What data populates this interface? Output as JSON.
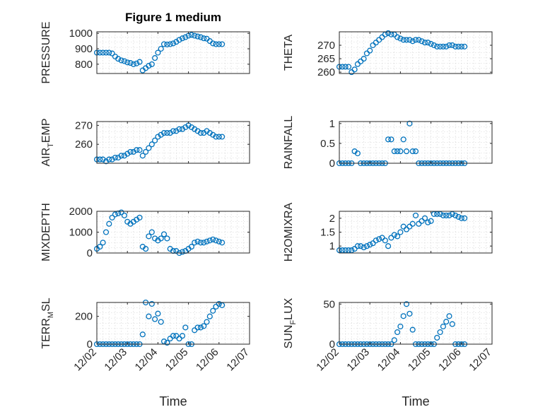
{
  "figure": {
    "title": "Figure 1 medium",
    "xlabel": "Time",
    "x_tick_labels": [
      "12/02",
      "12/03",
      "12/04",
      "12/05",
      "12/06",
      "12/07"
    ],
    "marker_color": "#0072BD"
  },
  "chart_data": [
    {
      "type": "scatter",
      "id": "pressure",
      "ylabel": "PRESSURE",
      "ylim": [
        740,
        1010
      ],
      "yticks": [
        800,
        900,
        1000
      ],
      "ytick_labels": [
        "800",
        "900",
        "1000"
      ],
      "xlim": [
        0,
        5
      ],
      "grid": true,
      "x": [
        0.0,
        0.1,
        0.2,
        0.3,
        0.4,
        0.5,
        0.6,
        0.7,
        0.8,
        0.9,
        1.0,
        1.1,
        1.2,
        1.3,
        1.4,
        1.5,
        1.6,
        1.7,
        1.8,
        1.9,
        2.0,
        2.1,
        2.2,
        2.3,
        2.4,
        2.5,
        2.6,
        2.7,
        2.8,
        2.9,
        3.0,
        3.1,
        3.2,
        3.3,
        3.4,
        3.5,
        3.6,
        3.7,
        3.8,
        3.9,
        4.0,
        4.1
      ],
      "y": [
        875,
        875,
        875,
        875,
        875,
        870,
        850,
        835,
        825,
        820,
        812,
        808,
        800,
        805,
        815,
        760,
        775,
        790,
        800,
        840,
        875,
        900,
        930,
        928,
        930,
        935,
        945,
        958,
        968,
        975,
        985,
        990,
        985,
        980,
        975,
        968,
        965,
        950,
        935,
        930,
        930,
        930
      ]
    },
    {
      "type": "scatter",
      "id": "air_temp",
      "ylabel": "AIR_TEMP",
      "ylim": [
        250,
        272
      ],
      "yticks": [
        260,
        270
      ],
      "ytick_labels": [
        "260",
        "270"
      ],
      "xlim": [
        0,
        5
      ],
      "grid": true,
      "x": [
        0.0,
        0.1,
        0.2,
        0.3,
        0.4,
        0.5,
        0.6,
        0.7,
        0.8,
        0.9,
        1.0,
        1.1,
        1.2,
        1.3,
        1.4,
        1.5,
        1.6,
        1.7,
        1.8,
        1.9,
        2.0,
        2.1,
        2.2,
        2.3,
        2.4,
        2.5,
        2.6,
        2.7,
        2.8,
        2.9,
        3.0,
        3.1,
        3.2,
        3.3,
        3.4,
        3.5,
        3.6,
        3.7,
        3.8,
        3.9,
        4.0,
        4.1
      ],
      "y": [
        252,
        252,
        252,
        251,
        252,
        252,
        253,
        253,
        254,
        254,
        255,
        256,
        256,
        257,
        257,
        254,
        256,
        258,
        260,
        262,
        264,
        265,
        266,
        266,
        266,
        267,
        267,
        268,
        268,
        269,
        270,
        269,
        268,
        267,
        266,
        266,
        267,
        266,
        265,
        264,
        264,
        264
      ]
    },
    {
      "type": "scatter",
      "id": "mixdepth",
      "ylabel": "MIXDEPTH",
      "ylim": [
        0,
        2000
      ],
      "yticks": [
        0,
        1000,
        2000
      ],
      "ytick_labels": [
        "0",
        "1000",
        "2000"
      ],
      "xlim": [
        0,
        5
      ],
      "grid": true,
      "x": [
        0.0,
        0.1,
        0.2,
        0.3,
        0.4,
        0.5,
        0.6,
        0.7,
        0.8,
        0.9,
        1.0,
        1.1,
        1.2,
        1.3,
        1.4,
        1.5,
        1.6,
        1.7,
        1.8,
        1.9,
        2.0,
        2.1,
        2.2,
        2.3,
        2.4,
        2.5,
        2.6,
        2.7,
        2.8,
        2.9,
        3.0,
        3.1,
        3.2,
        3.3,
        3.4,
        3.5,
        3.6,
        3.7,
        3.8,
        3.9,
        4.0,
        4.1
      ],
      "y": [
        200,
        300,
        500,
        1000,
        1400,
        1700,
        1850,
        1900,
        1950,
        1800,
        1500,
        1400,
        1500,
        1600,
        1700,
        300,
        200,
        800,
        1000,
        700,
        600,
        700,
        900,
        700,
        200,
        100,
        100,
        0,
        50,
        100,
        200,
        300,
        500,
        550,
        500,
        500,
        550,
        600,
        650,
        600,
        550,
        500
      ]
    },
    {
      "type": "scatter",
      "id": "terr_msl",
      "ylabel": "TERR_MSL",
      "ylim": [
        0,
        300
      ],
      "yticks": [
        0,
        200
      ],
      "ytick_labels": [
        "0",
        "200"
      ],
      "xlim": [
        0,
        5
      ],
      "grid": true,
      "x": [
        0.0,
        0.1,
        0.2,
        0.3,
        0.4,
        0.5,
        0.6,
        0.7,
        0.8,
        0.9,
        1.0,
        1.1,
        1.2,
        1.3,
        1.4,
        1.5,
        1.6,
        1.7,
        1.8,
        1.9,
        2.0,
        2.1,
        2.2,
        2.3,
        2.4,
        2.5,
        2.6,
        2.7,
        2.8,
        2.9,
        3.0,
        3.1,
        3.2,
        3.3,
        3.4,
        3.5,
        3.6,
        3.7,
        3.8,
        3.9,
        4.0,
        4.1
      ],
      "y": [
        0,
        0,
        0,
        0,
        0,
        0,
        0,
        0,
        0,
        0,
        0,
        0,
        0,
        0,
        0,
        70,
        300,
        200,
        290,
        180,
        220,
        160,
        20,
        10,
        40,
        60,
        60,
        40,
        60,
        120,
        0,
        0,
        100,
        120,
        120,
        130,
        160,
        200,
        240,
        270,
        290,
        280
      ]
    },
    {
      "type": "scatter",
      "id": "theta",
      "ylabel": "THETA",
      "ylim": [
        259.5,
        275
      ],
      "yticks": [
        260,
        265,
        270
      ],
      "ytick_labels": [
        "260",
        "265",
        "270"
      ],
      "xlim": [
        0,
        5
      ],
      "grid": true,
      "x": [
        0.0,
        0.1,
        0.2,
        0.3,
        0.4,
        0.5,
        0.6,
        0.7,
        0.8,
        0.9,
        1.0,
        1.1,
        1.2,
        1.3,
        1.4,
        1.5,
        1.6,
        1.7,
        1.8,
        1.9,
        2.0,
        2.1,
        2.2,
        2.3,
        2.4,
        2.5,
        2.6,
        2.7,
        2.8,
        2.9,
        3.0,
        3.1,
        3.2,
        3.3,
        3.4,
        3.5,
        3.6,
        3.7,
        3.8,
        3.9,
        4.0,
        4.1
      ],
      "y": [
        262,
        262,
        262,
        262,
        260,
        261,
        263,
        264,
        265,
        267,
        268,
        270,
        271,
        272,
        273,
        274,
        274.5,
        274,
        274,
        273,
        272.5,
        272,
        272,
        272,
        271.5,
        272,
        272,
        271.5,
        271,
        271,
        270.5,
        270,
        269.5,
        269.5,
        269.5,
        269.5,
        270,
        270,
        269.5,
        269.5,
        269.5,
        269.5
      ]
    },
    {
      "type": "scatter",
      "id": "rainfall",
      "ylabel": "RAINFALL",
      "ylim": [
        0,
        1.05
      ],
      "yticks": [
        0,
        0.5,
        1
      ],
      "ytick_labels": [
        "0",
        "0.5",
        "1"
      ],
      "xlim": [
        0,
        5
      ],
      "grid": true,
      "x": [
        0.0,
        0.1,
        0.2,
        0.3,
        0.4,
        0.5,
        0.6,
        0.7,
        0.8,
        0.9,
        1.0,
        1.1,
        1.2,
        1.3,
        1.4,
        1.5,
        1.6,
        1.7,
        1.8,
        1.9,
        2.0,
        2.1,
        2.2,
        2.3,
        2.4,
        2.5,
        2.6,
        2.7,
        2.8,
        2.9,
        3.0,
        3.1,
        3.2,
        3.3,
        3.4,
        3.5,
        3.6,
        3.7,
        3.8,
        3.9,
        4.0,
        4.1
      ],
      "y": [
        0,
        0,
        0,
        0,
        0,
        0.3,
        0.25,
        0,
        0,
        0,
        0,
        0,
        0,
        0,
        0,
        0,
        0.6,
        0.6,
        0.3,
        0.3,
        0.3,
        0.6,
        0.3,
        1.0,
        0.3,
        0.3,
        0,
        0,
        0,
        0,
        0,
        0,
        0,
        0,
        0,
        0,
        0,
        0,
        0,
        0,
        0,
        0
      ]
    },
    {
      "type": "scatter",
      "id": "h2omixra",
      "ylabel": "H2OMIXRA",
      "ylim": [
        0.75,
        2.25
      ],
      "yticks": [
        1,
        1.5,
        2
      ],
      "ytick_labels": [
        "1",
        "1.5",
        "2"
      ],
      "xlim": [
        0,
        5
      ],
      "grid": true,
      "x": [
        0.0,
        0.1,
        0.2,
        0.3,
        0.4,
        0.5,
        0.6,
        0.7,
        0.8,
        0.9,
        1.0,
        1.1,
        1.2,
        1.3,
        1.4,
        1.5,
        1.6,
        1.7,
        1.8,
        1.9,
        2.0,
        2.1,
        2.2,
        2.3,
        2.4,
        2.5,
        2.6,
        2.7,
        2.8,
        2.9,
        3.0,
        3.1,
        3.2,
        3.3,
        3.4,
        3.5,
        3.6,
        3.7,
        3.8,
        3.9,
        4.0,
        4.1
      ],
      "y": [
        0.85,
        0.85,
        0.85,
        0.85,
        0.85,
        0.9,
        1.0,
        1.0,
        0.95,
        1.0,
        1.05,
        1.1,
        1.2,
        1.25,
        1.3,
        1.2,
        1.0,
        1.3,
        1.4,
        1.35,
        1.5,
        1.7,
        1.6,
        1.7,
        1.8,
        2.1,
        1.8,
        1.9,
        2.0,
        1.85,
        1.9,
        2.15,
        2.15,
        2.15,
        2.1,
        2.1,
        2.1,
        2.15,
        2.1,
        2.05,
        2.0,
        2.0
      ]
    },
    {
      "type": "scatter",
      "id": "sun_flux",
      "ylabel": "SUN_FLUX",
      "ylim": [
        0,
        52
      ],
      "yticks": [
        0,
        50
      ],
      "ytick_labels": [
        "0",
        "50"
      ],
      "xlim": [
        0,
        5
      ],
      "grid": true,
      "x": [
        0.0,
        0.1,
        0.2,
        0.3,
        0.4,
        0.5,
        0.6,
        0.7,
        0.8,
        0.9,
        1.0,
        1.1,
        1.2,
        1.3,
        1.4,
        1.5,
        1.6,
        1.7,
        1.8,
        1.9,
        2.0,
        2.1,
        2.2,
        2.3,
        2.4,
        2.5,
        2.6,
        2.7,
        2.8,
        2.9,
        3.0,
        3.1,
        3.2,
        3.3,
        3.4,
        3.5,
        3.6,
        3.7,
        3.8,
        3.9,
        4.0,
        4.1
      ],
      "y": [
        0,
        0,
        0,
        0,
        0,
        0,
        0,
        0,
        0,
        0,
        0,
        0,
        0,
        0,
        0,
        0,
        0,
        0,
        5,
        15,
        22,
        35,
        50,
        38,
        18,
        0,
        0,
        0,
        0,
        0,
        0,
        0,
        8,
        15,
        22,
        28,
        35,
        25,
        0,
        0,
        0,
        0
      ]
    }
  ]
}
